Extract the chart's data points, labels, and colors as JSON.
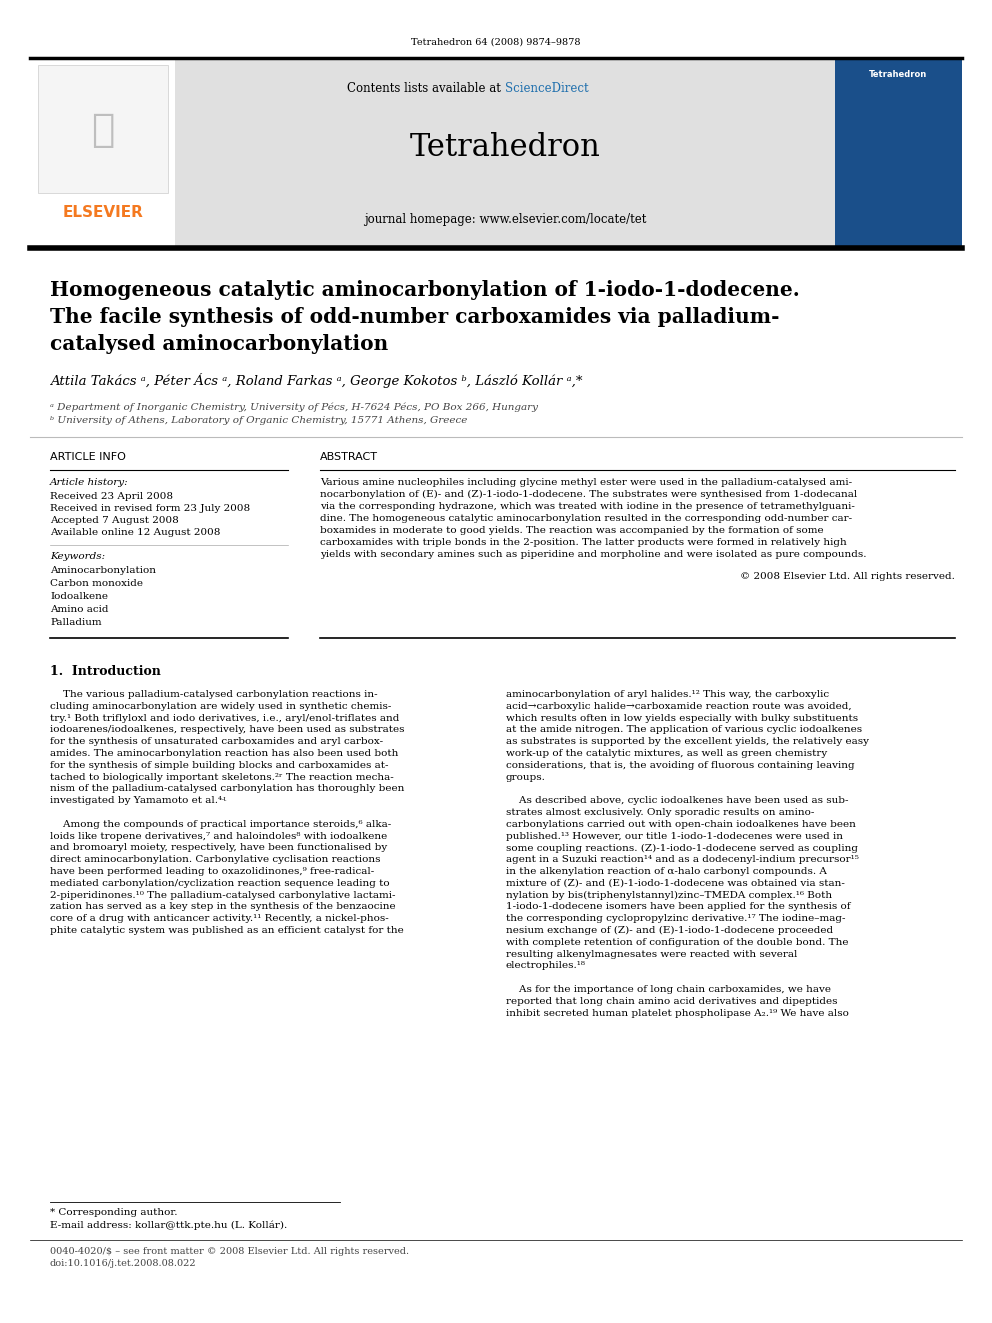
{
  "pw": 992,
  "ph": 1323,
  "bg_color": "#ffffff",
  "top_citation": "Tetrahedron 64 (2008) 9874–9878",
  "journal_name": "Tetrahedron",
  "contents_text": "Contents lists available at ScienceDirect",
  "homepage_text": "journal homepage: www.elsevier.com/locate/tet",
  "title_line1": "Homogeneous catalytic aminocarbonylation of 1-iodo-1-dodecene.",
  "title_line2": "The facile synthesis of odd-number carboxamides via palladium-",
  "title_line3": "catalysed aminocarbonylation",
  "authors": "Attila Takács ᵃ, Péter Ács ᵃ, Roland Farkas ᵃ, George Kokotos ᵇ, László Kollár ᵃ,*",
  "affil_a": "ᵃ Department of Inorganic Chemistry, University of Pécs, H-7624 Pécs, PO Box 266, Hungary",
  "affil_b": "ᵇ University of Athens, Laboratory of Organic Chemistry, 15771 Athens, Greece",
  "article_info_header": "ARTICLE INFO",
  "abstract_header": "ABSTRACT",
  "article_history_label": "Article history:",
  "received1": "Received 23 April 2008",
  "received2": "Received in revised form 23 July 2008",
  "accepted": "Accepted 7 August 2008",
  "available": "Available online 12 August 2008",
  "keywords_label": "Keywords:",
  "kw1": "Aminocarbonylation",
  "kw2": "Carbon monoxide",
  "kw3": "Iodoalkene",
  "kw4": "Amino acid",
  "kw5": "Palladium",
  "copyright": "© 2008 Elsevier Ltd. All rights reserved.",
  "intro_header": "1.  Introduction",
  "footnote_star": "* Corresponding author.",
  "footnote_email": "E-mail address: kollar@ttk.pte.hu (L. Kollár).",
  "footnote_bottom1": "0040-4020/$ – see front matter © 2008 Elsevier Ltd. All rights reserved.",
  "footnote_bottom2": "doi:10.1016/j.tet.2008.08.022",
  "header_bg": "#e0e0e0",
  "elsevier_orange": "#f47920",
  "sciencedirect_blue": "#1f6fad",
  "black": "#000000",
  "dark_gray": "#444444"
}
